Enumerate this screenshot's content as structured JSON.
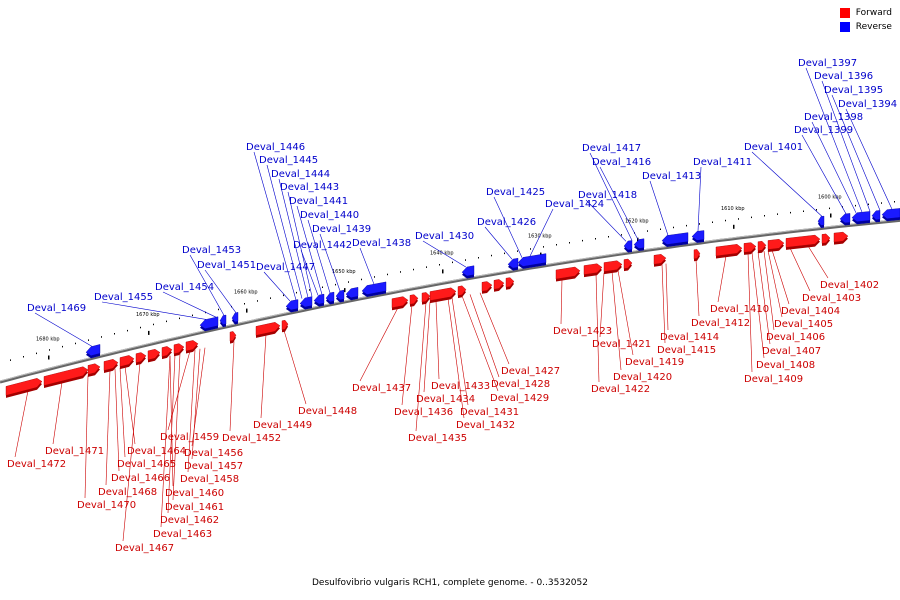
{
  "legend": {
    "forward_label": "Forward",
    "reverse_label": "Reverse",
    "forward_color": "#ff0000",
    "reverse_color": "#0000ff"
  },
  "caption": "Desulfovibrio vulgaris RCH1, complete genome. - 0..3532052",
  "scale_labels": [
    "1680 kbp",
    "1670 kbp",
    "1660 kbp",
    "1650 kbp",
    "1640 kbp",
    "1630 kbp",
    "1620 kbp",
    "1610 kbp",
    "1600 kbp"
  ],
  "genes_forward": [
    "Deval_1472",
    "Deval_1471",
    "Deval_1470",
    "Deval_1468",
    "Deval_1467",
    "Deval_1466",
    "Deval_1465",
    "Deval_1464",
    "Deval_1463",
    "Deval_1462",
    "Deval_1461",
    "Deval_1460",
    "Deval_1459",
    "Deval_1458",
    "Deval_1457",
    "Deval_1456",
    "Deval_1452",
    "Deval_1449",
    "Deval_1448",
    "Deval_1437",
    "Deval_1436",
    "Deval_1435",
    "Deval_1434",
    "Deval_1433",
    "Deval_1432",
    "Deval_1431",
    "Deval_1429",
    "Deval_1428",
    "Deval_1427",
    "Deval_1423",
    "Deval_1422",
    "Deval_1421",
    "Deval_1420",
    "Deval_1419",
    "Deval_1415",
    "Deval_1414",
    "Deval_1412",
    "Deval_1410",
    "Deval_1409",
    "Deval_1408",
    "Deval_1407",
    "Deval_1406",
    "Deval_1405",
    "Deval_1404",
    "Deval_1403",
    "Deval_1402"
  ],
  "genes_reverse": [
    "Deval_1469",
    "Deval_1455",
    "Deval_1454",
    "Deval_1453",
    "Deval_1451",
    "Deval_1447",
    "Deval_1446",
    "Deval_1445",
    "Deval_1444",
    "Deval_1443",
    "Deval_1442",
    "Deval_1441",
    "Deval_1440",
    "Deval_1439",
    "Deval_1438",
    "Deval_1430",
    "Deval_1426",
    "Deval_1425",
    "Deval_1424",
    "Deval_1418",
    "Deval_1417",
    "Deval_1416",
    "Deval_1413",
    "Deval_1411",
    "Deval_1401",
    "Deval_1399",
    "Deval_1398",
    "Deval_1397",
    "Deval_1396",
    "Deval_1395",
    "Deval_1394"
  ]
}
